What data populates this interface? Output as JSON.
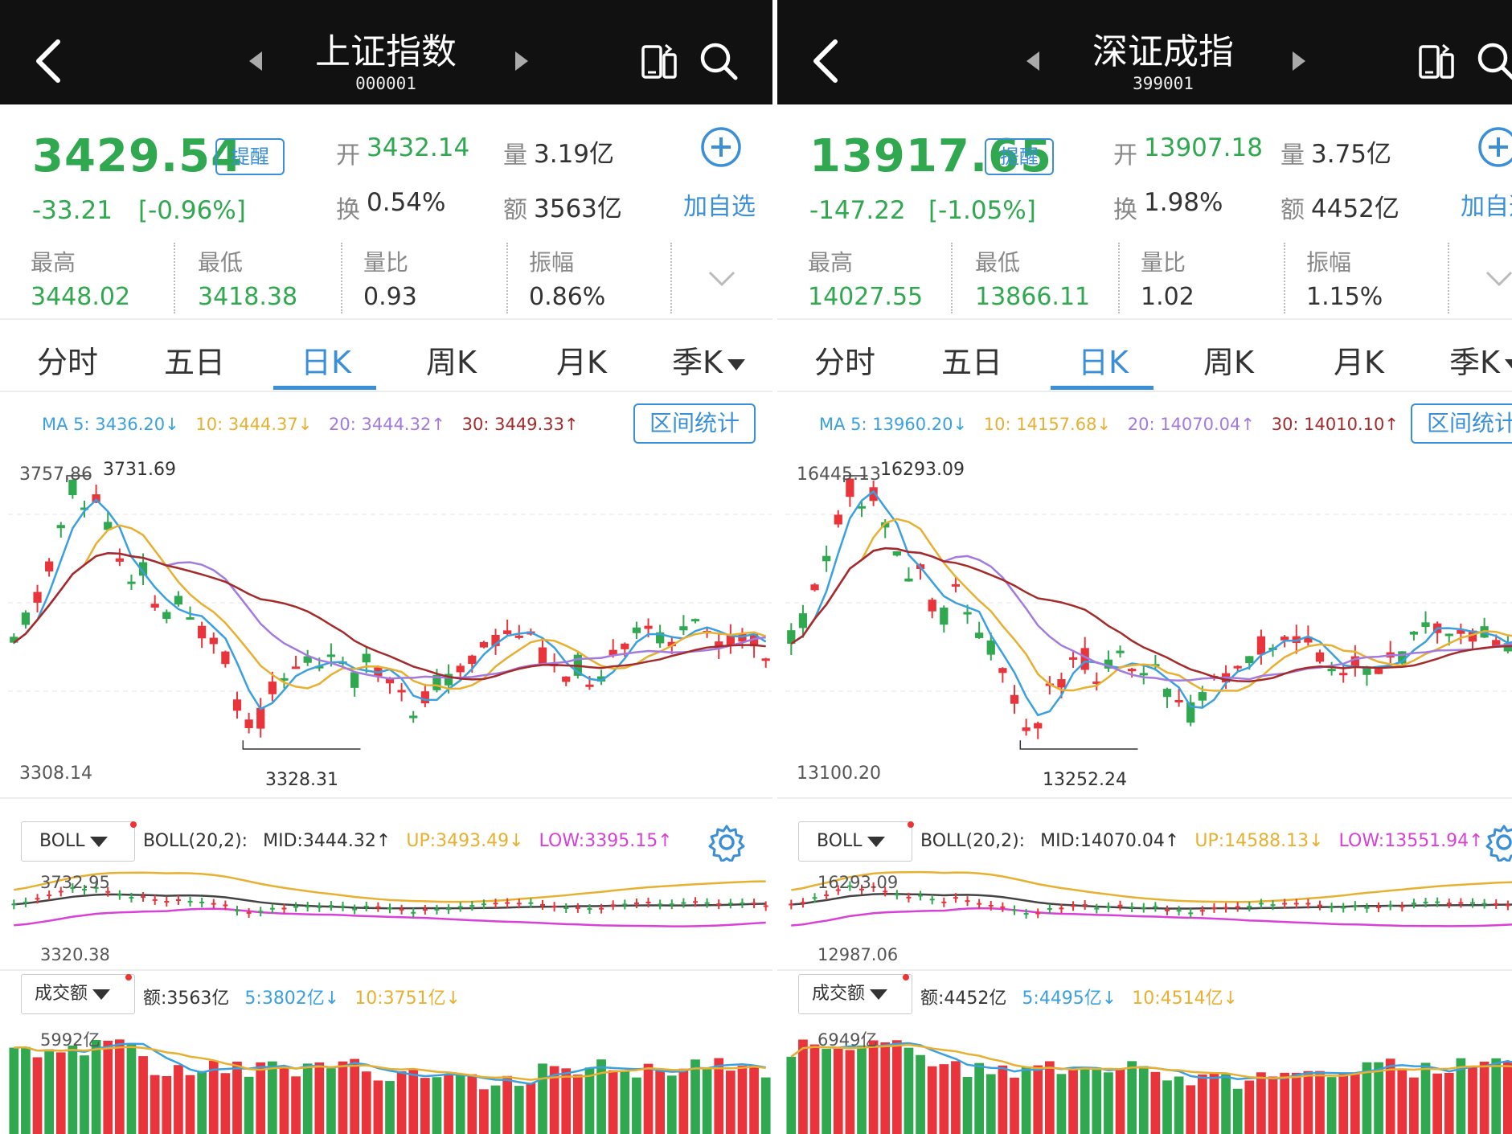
{
  "colors": {
    "up": "#e8343a",
    "down": "#2fa84f",
    "accent": "#3a8fd6",
    "ma5": "#3aa0e0",
    "ma10": "#e8b030",
    "ma20": "#a37be0",
    "ma30": "#a52a2a",
    "boll_mid": "#444444",
    "boll_up": "#e8b030",
    "boll_low": "#d840d8"
  },
  "panels": [
    {
      "name": "上证指数",
      "code": "000001",
      "price": "3429.54",
      "remind_label": "提醒",
      "change": "-33.21",
      "change_pct": "[-0.96%]",
      "open_label": "开",
      "open": "3432.14",
      "volume_label": "量",
      "volume": "3.19亿",
      "turnover_label": "换",
      "turnover": "0.54%",
      "amount_label": "额",
      "amount": "3563亿",
      "add_fav_label": "加自选",
      "high_label": "最高",
      "high": "3448.02",
      "low_label": "最低",
      "low": "3418.38",
      "ratio_label": "量比",
      "ratio": "0.93",
      "amp_label": "振幅",
      "amp": "0.86%",
      "tabs": [
        "分时",
        "五日",
        "日K",
        "周K",
        "月K",
        "季K"
      ],
      "active_tab": "日K",
      "ma": {
        "ma5": "MA 5: 3436.20↓",
        "ma10": "10: 3444.37↓",
        "ma20": "20: 3444.32↑",
        "ma30": "30: 3449.33↑"
      },
      "range_label": "区间统计",
      "chart_high_label": "3731.69",
      "chart_top_axis": "3757.86",
      "chart_low_label": "3328.31",
      "chart_bottom_axis": "3308.14",
      "boll_button": "BOLL",
      "boll": {
        "name": "BOLL(20,2):",
        "mid": "MID:3444.32↑",
        "up": "UP:3493.49↓",
        "low": "LOW:3395.15↑"
      },
      "boll_top_axis": "3732.95",
      "boll_bottom_axis": "3320.38",
      "vol_button": "成交额",
      "vol": {
        "amount": "额:3563亿",
        "ma5": "5:3802亿↓",
        "ma10": "10:3751亿↓"
      },
      "vol_top_axis": "5992亿",
      "seed": 11
    },
    {
      "name": "深证成指",
      "code": "399001",
      "price": "13917.65",
      "remind_label": "提醒",
      "change": "-147.22",
      "change_pct": "[-1.05%]",
      "open_label": "开",
      "open": "13907.18",
      "volume_label": "量",
      "volume": "3.75亿",
      "turnover_label": "换",
      "turnover": "1.98%",
      "amount_label": "额",
      "amount": "4452亿",
      "add_fav_label": "加自选",
      "high_label": "最高",
      "high": "14027.55",
      "low_label": "最低",
      "low": "13866.11",
      "ratio_label": "量比",
      "ratio": "1.02",
      "amp_label": "振幅",
      "amp": "1.15%",
      "tabs": [
        "分时",
        "五日",
        "日K",
        "周K",
        "月K",
        "季K"
      ],
      "active_tab": "日K",
      "ma": {
        "ma5": "MA 5: 13960.20↓",
        "ma10": "10: 14157.68↓",
        "ma20": "20: 14070.04↑",
        "ma30": "30: 14010.10↑"
      },
      "range_label": "区间统计",
      "chart_high_label": "16293.09",
      "chart_top_axis": "16445.13",
      "chart_low_label": "13252.24",
      "chart_bottom_axis": "13100.20",
      "boll_button": "BOLL",
      "boll": {
        "name": "BOLL(20,2):",
        "mid": "MID:14070.04↑",
        "up": "UP:14588.13↓",
        "low": "LOW:13551.94↑"
      },
      "boll_top_axis": "16293.09",
      "boll_bottom_axis": "12987.06",
      "vol_button": "成交额",
      "vol": {
        "amount": "额:4452亿",
        "ma5": "5:4495亿↓",
        "ma10": "10:4514亿↓"
      },
      "vol_top_axis": "6949亿",
      "seed": 29
    }
  ]
}
